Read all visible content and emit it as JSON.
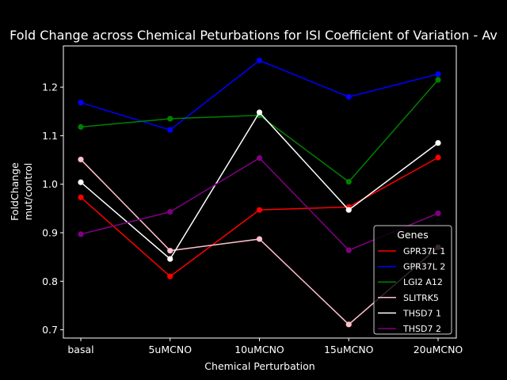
{
  "chart_data": {
    "type": "line",
    "title": "Fold Change across Chemical Peturbations for ISI Coefficient of Variation - Av",
    "xlabel": "Chemical Perturbation",
    "ylabel_lines": [
      "FoldChange",
      "mut/control"
    ],
    "categories": [
      "basal",
      "5uMCNO",
      "10uMCNO",
      "15uMCNO",
      "20uMCNO"
    ],
    "ylim": [
      0.683,
      1.285
    ],
    "yticks": [
      0.7,
      0.8,
      0.9,
      1.0,
      1.1,
      1.2
    ],
    "ytick_labels": [
      "0.7",
      "0.8",
      "0.9",
      "1.0",
      "1.1",
      "1.2"
    ],
    "grid": false,
    "legend": {
      "title": "Genes",
      "placement": "lower-right"
    },
    "series": [
      {
        "name": "GPR37L 1",
        "color": "#ff0000",
        "values": [
          0.973,
          0.81,
          0.947,
          0.953,
          1.055
        ]
      },
      {
        "name": "GPR37L 2",
        "color": "#0000ff",
        "values": [
          1.168,
          1.112,
          1.255,
          1.18,
          1.227
        ]
      },
      {
        "name": "LGI2 A12",
        "color": "#008000",
        "values": [
          1.118,
          1.135,
          1.142,
          1.005,
          1.215
        ]
      },
      {
        "name": "SLITRK5",
        "color": "#ffc0cb",
        "values": [
          1.051,
          0.863,
          0.887,
          0.711,
          0.87
        ]
      },
      {
        "name": "THSD7 1",
        "color": "#ffffff",
        "values": [
          1.004,
          0.846,
          1.148,
          0.947,
          1.085
        ]
      },
      {
        "name": "THSD7 2",
        "color": "#800080",
        "values": [
          0.897,
          0.943,
          1.054,
          0.864,
          0.94
        ]
      }
    ]
  }
}
